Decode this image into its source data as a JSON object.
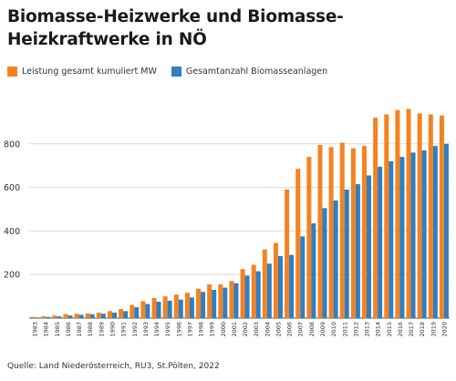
{
  "page": {
    "title_line1": "Biomasse-Heizwerke und Biomasse-",
    "title_line2": "Heizkraftwerke in NÖ",
    "source": "Quelle: Land Niederösterreich, RU3, St.Pölten, 2022"
  },
  "colors": {
    "orange": "#F58220",
    "blue": "#2F7FC1",
    "grid": "#d9d9d9",
    "axis": "#555555"
  },
  "chart_data": {
    "type": "bar",
    "title": "Biomasse-Heizwerke und Biomasse-Heizkraftwerke in NÖ",
    "ylim": [
      0,
      1000
    ],
    "yticks": [
      200,
      400,
      600,
      800
    ],
    "grid": true,
    "legend_position": "top-left",
    "categories": [
      "1983",
      "1984",
      "1985",
      "1986",
      "1987",
      "1988",
      "1989",
      "1990",
      "1991",
      "1992",
      "1993",
      "1994",
      "1995",
      "1996",
      "1997",
      "1998",
      "1999",
      "2000",
      "2001",
      "2002",
      "2003",
      "2004",
      "2005",
      "2006",
      "2007",
      "2008",
      "2009",
      "2010",
      "2011",
      "2012",
      "2013",
      "2014",
      "2015",
      "2016",
      "2017",
      "2018",
      "2019",
      "2020"
    ],
    "series": [
      {
        "name": "Leistung gesamt kumuliert MW",
        "color": "#F58220",
        "values": [
          5,
          8,
          12,
          18,
          20,
          22,
          25,
          32,
          42,
          60,
          78,
          92,
          100,
          108,
          116,
          135,
          155,
          155,
          170,
          225,
          245,
          315,
          345,
          590,
          685,
          740,
          795,
          785,
          805,
          780,
          790,
          920,
          935,
          955,
          960,
          940,
          935,
          930
        ]
      },
      {
        "name": "Gesamtanzahl Biomasseanlagen",
        "color": "#2F7FC1",
        "values": [
          3,
          5,
          8,
          12,
          15,
          18,
          20,
          25,
          32,
          50,
          65,
          75,
          80,
          85,
          95,
          120,
          130,
          140,
          160,
          195,
          215,
          250,
          285,
          290,
          375,
          435,
          505,
          540,
          590,
          615,
          655,
          695,
          720,
          740,
          760,
          770,
          790,
          800
        ]
      }
    ]
  }
}
